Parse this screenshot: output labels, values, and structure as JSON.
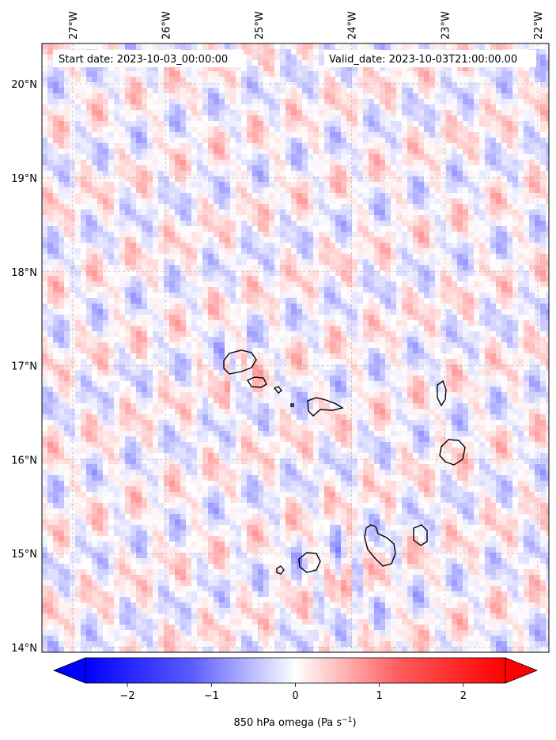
{
  "map": {
    "start_label": "Start date: 2023-10-03_00:00:00",
    "valid_label": "Valid_date: 2023-10-03T21:00:00.00",
    "lon_ticks": [
      {
        "label": "27°W",
        "lon": -27
      },
      {
        "label": "26°W",
        "lon": -26
      },
      {
        "label": "25°W",
        "lon": -25
      },
      {
        "label": "24°W",
        "lon": -24
      },
      {
        "label": "23°W",
        "lon": -23
      },
      {
        "label": "22°W",
        "lon": -22
      }
    ],
    "lat_ticks": [
      {
        "label": "20°N",
        "lat": 20
      },
      {
        "label": "19°N",
        "lat": 19
      },
      {
        "label": "18°N",
        "lat": 18
      },
      {
        "label": "17°N",
        "lat": 17
      },
      {
        "label": "16°N",
        "lat": 16
      },
      {
        "label": "15°N",
        "lat": 15
      },
      {
        "label": "14°N",
        "lat": 14
      }
    ],
    "extent": {
      "lon_min": -27.33,
      "lon_max": -21.88,
      "lat_min": 13.95,
      "lat_max": 20.43
    },
    "colors": {
      "negative": "#0000ff",
      "neutral": "#ffffff",
      "positive": "#ff0000",
      "coast": "#000000",
      "grid": "#b0b0b0"
    }
  },
  "colorbar": {
    "label": "850 hPa omega (Pa s",
    "label_exp": "−1",
    "label_close": ")",
    "ticks": [
      "−2",
      "−1",
      "0",
      "1",
      "2"
    ],
    "tick_values": [
      -2,
      -1,
      0,
      1,
      2
    ],
    "vmin": -2.5,
    "vmax": 2.5
  }
}
